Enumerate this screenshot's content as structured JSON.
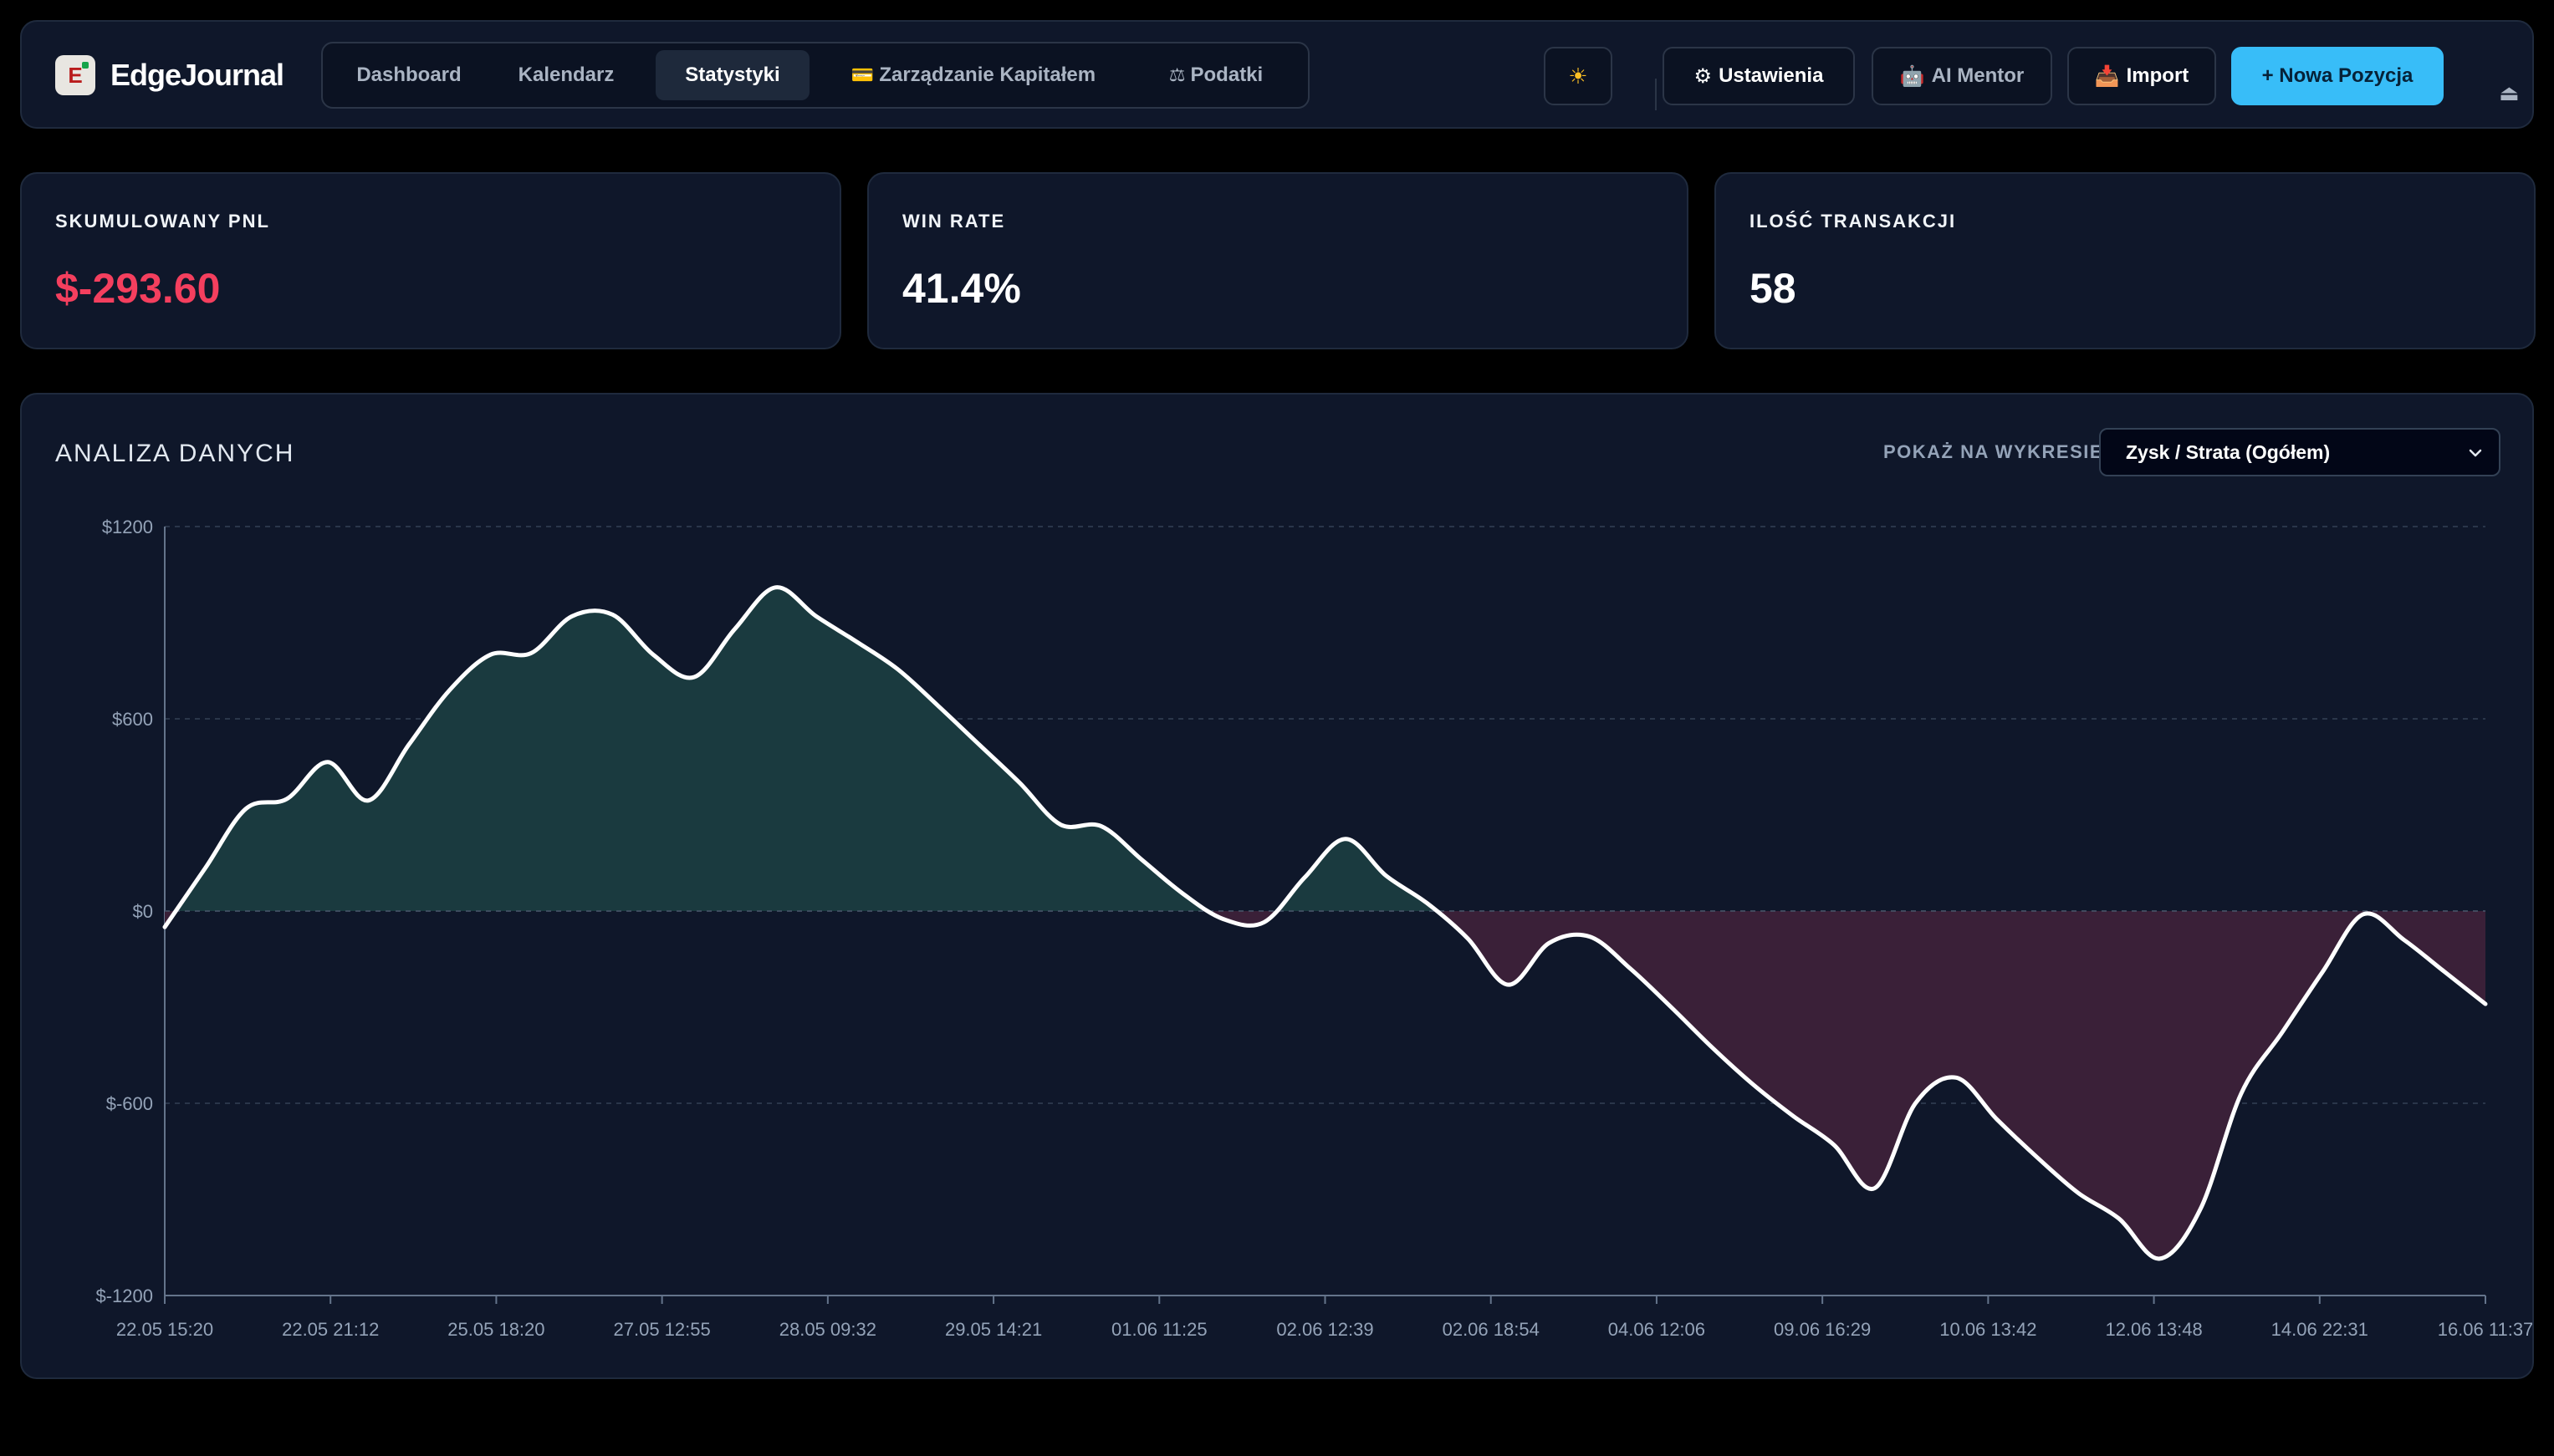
{
  "brand": {
    "name": "EdgeJournal",
    "logo_letter": "E"
  },
  "nav": {
    "tabs": [
      {
        "label": "Dashboard",
        "icon": ""
      },
      {
        "label": "Kalendarz",
        "icon": ""
      },
      {
        "label": "Statystyki",
        "icon": "",
        "active": true
      },
      {
        "label": "Zarządzanie Kapitałem",
        "icon": "credit-card-icon"
      },
      {
        "label": "Podatki",
        "icon": "scales-icon"
      }
    ]
  },
  "toolbar": {
    "theme_icon": "sun-icon",
    "settings_label": "Ustawienia",
    "settings_icon": "gear-icon",
    "mentor_label": "AI Mentor",
    "mentor_icon": "robot-icon",
    "import_label": "Import",
    "import_icon": "inbox-tray-icon",
    "new_position_label": "+ Nowa Pozycja",
    "logout_icon": "eject-icon"
  },
  "stats": {
    "pnl": {
      "label": "SKUMULOWANY PNL",
      "value": "$-293.60"
    },
    "win_rate": {
      "label": "WIN RATE",
      "value": "41.4%"
    },
    "trades": {
      "label": "ILOŚĆ TRANSAKCJI",
      "value": "58"
    }
  },
  "analysis": {
    "title": "ANALIZA DANYCH",
    "select_label": "POKAŻ NA WYKRESIE:",
    "select_value": "Zysk / Strata (Ogółem)"
  },
  "colors": {
    "accent": "#38bdf8",
    "negative": "#f43f5e",
    "positive_fill": "#1a3a3f",
    "negative_fill": "#3a2038",
    "line": "#ffffff"
  },
  "chart_data": {
    "type": "area",
    "y_ticks": [
      "$1200",
      "$600",
      "$0",
      "$-600",
      "$-1200"
    ],
    "y_tick_values": [
      1200,
      600,
      0,
      -600,
      -1200
    ],
    "ylim": [
      -1200,
      1200
    ],
    "x_ticks": [
      "22.05 15:20",
      "22.05 21:12",
      "25.05 18:20",
      "27.05 12:55",
      "28.05 09:32",
      "29.05 14:21",
      "01.06 11:25",
      "02.06 12:39",
      "02.06 18:54",
      "04.06 12:06",
      "09.06 16:29",
      "10.06 13:42",
      "12.06 13:48",
      "14.06 22:31",
      "16.06 11:37"
    ],
    "grid": true,
    "series": [
      {
        "values": [
          -50,
          135,
          320,
          350,
          465,
          345,
          520,
          690,
          800,
          805,
          920,
          925,
          800,
          730,
          880,
          1010,
          920,
          840,
          755,
          640,
          520,
          400,
          270,
          265,
          160,
          55,
          -25,
          -35,
          105,
          225,
          110,
          25,
          -85,
          -230,
          -100,
          -80,
          -180,
          -300,
          -425,
          -540,
          -640,
          -730,
          -865,
          -600,
          -520,
          -650,
          -770,
          -880,
          -960,
          -1085,
          -930,
          -570,
          -380,
          -190,
          -10,
          -90,
          -190,
          -290
        ]
      }
    ]
  }
}
